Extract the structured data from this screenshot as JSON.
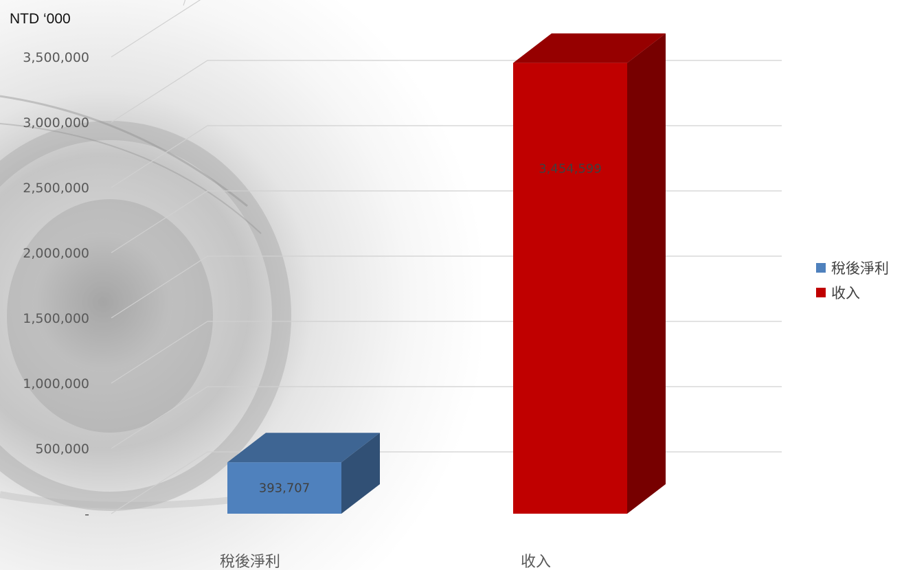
{
  "unit_label": "NTD ‘000",
  "chart_data": {
    "type": "bar",
    "style": "3d-column",
    "categories": [
      "稅後淨利",
      "收入"
    ],
    "values": [
      393707,
      3454599
    ],
    "data_labels": [
      "393,707",
      "3,454,599"
    ],
    "colors": [
      "#4f81bd",
      "#c00000"
    ],
    "ylim": [
      0,
      3500000
    ],
    "yticks": [
      0,
      500000,
      1000000,
      1500000,
      2000000,
      2500000,
      3000000,
      3500000
    ],
    "ytick_labels": [
      "-",
      "500,000",
      "1,000,000",
      "1,500,000",
      "2,000,000",
      "2,500,000",
      "3,000,000",
      "3,500,000"
    ],
    "grid": true,
    "legend_position": "right",
    "legend": [
      {
        "label": "稅後淨利",
        "color": "#4f81bd"
      },
      {
        "label": "收入",
        "color": "#c00000"
      }
    ]
  }
}
